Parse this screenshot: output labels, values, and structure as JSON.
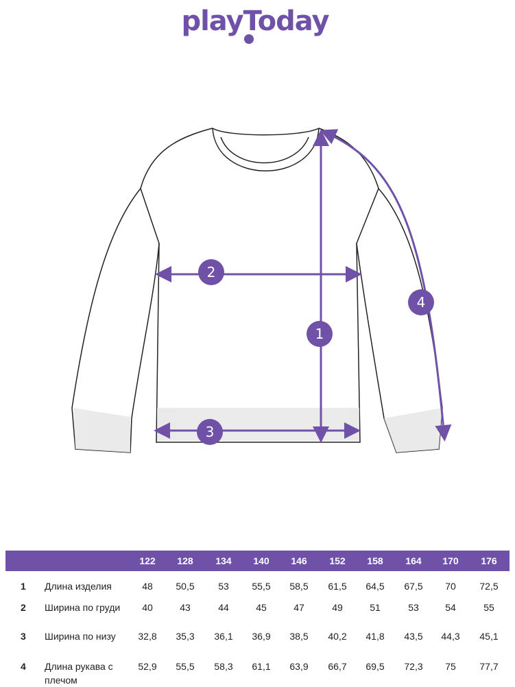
{
  "brand": {
    "logo_text": "playToday",
    "color": "#6f52a8"
  },
  "diagram": {
    "markers": [
      "1",
      "2",
      "3",
      "4"
    ]
  },
  "table": {
    "sizes": [
      "122",
      "128",
      "134",
      "140",
      "146",
      "152",
      "158",
      "164",
      "170",
      "176"
    ],
    "rows": [
      {
        "num": "1",
        "label": "Длина изделия",
        "values": [
          "48",
          "50,5",
          "53",
          "55,5",
          "58,5",
          "61,5",
          "64,5",
          "67,5",
          "70",
          "72,5"
        ]
      },
      {
        "num": "2",
        "label": "Ширина по груди",
        "values": [
          "40",
          "43",
          "44",
          "45",
          "47",
          "49",
          "51",
          "53",
          "54",
          "55"
        ]
      },
      {
        "num": "3",
        "label": "Ширина по низу",
        "values": [
          "32,8",
          "35,3",
          "36,1",
          "36,9",
          "38,5",
          "40,2",
          "41,8",
          "43,5",
          "44,3",
          "45,1"
        ]
      },
      {
        "num": "4",
        "label": "Длина рукава с плечом",
        "values": [
          "52,9",
          "55,5",
          "58,3",
          "61,1",
          "63,9",
          "66,7",
          "69,5",
          "72,3",
          "75",
          "77,7"
        ]
      }
    ]
  }
}
